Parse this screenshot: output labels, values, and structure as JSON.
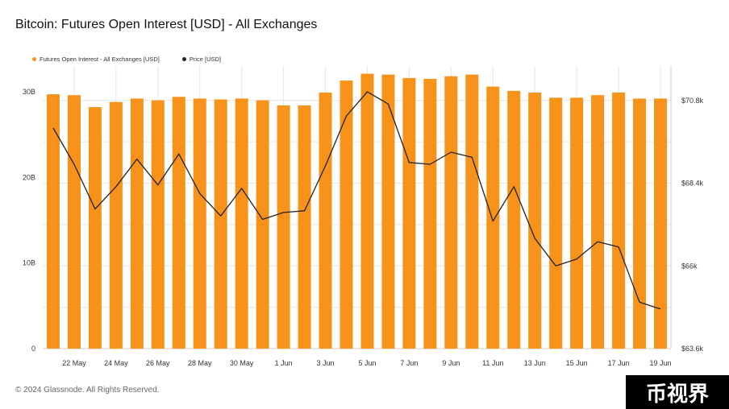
{
  "header": {
    "title": "Bitcoin: Futures Open Interest [USD] - All Exchanges"
  },
  "footer": {
    "copyright": "© 2024 Glassnode. All Rights Reserved."
  },
  "watermark": {
    "text": "币视界"
  },
  "colors": {
    "bar": "#F7931A",
    "line": "#222222",
    "grid": "#e6e6e6"
  },
  "chart_data": {
    "type": "bar",
    "legend_placement": "top-left",
    "grid": true,
    "x_tick_labels": [
      "22 May",
      "24 May",
      "26 May",
      "28 May",
      "30 May",
      "1 Jun",
      "3 Jun",
      "5 Jun",
      "7 Jun",
      "9 Jun",
      "11 Jun",
      "13 Jun",
      "15 Jun",
      "17 Jun",
      "19 Jun"
    ],
    "x": [
      "21 May",
      "22 May",
      "23 May",
      "24 May",
      "25 May",
      "26 May",
      "27 May",
      "28 May",
      "29 May",
      "30 May",
      "31 May",
      "1 Jun",
      "2 Jun",
      "3 Jun",
      "4 Jun",
      "5 Jun",
      "6 Jun",
      "7 Jun",
      "8 Jun",
      "9 Jun",
      "10 Jun",
      "11 Jun",
      "12 Jun",
      "13 Jun",
      "14 Jun",
      "15 Jun",
      "16 Jun",
      "17 Jun",
      "18 Jun",
      "19 Jun"
    ],
    "y_left": {
      "ticks": [
        "0",
        "10B",
        "20B",
        "30B"
      ],
      "range": [
        0,
        33
      ]
    },
    "y_right": {
      "ticks": [
        "$63.6k",
        "$66k",
        "$68.4k",
        "$70.8k"
      ],
      "range": [
        63600,
        71800
      ]
    },
    "series": [
      {
        "name": "Futures Open Interest - All Exchanges [USD]",
        "type": "bar",
        "axis": "left",
        "unit": "B USD",
        "values": [
          29.7,
          29.6,
          28.2,
          28.8,
          29.2,
          29.0,
          29.4,
          29.2,
          29.1,
          29.2,
          29.0,
          28.4,
          28.4,
          29.9,
          31.3,
          32.1,
          32.0,
          31.6,
          31.5,
          31.8,
          32.0,
          30.6,
          30.1,
          29.9,
          29.3,
          29.3,
          29.6,
          29.9,
          29.2,
          29.2
        ]
      },
      {
        "name": "Price [USD]",
        "type": "line",
        "axis": "right",
        "unit": "USD",
        "values": [
          70000,
          68950,
          67650,
          68300,
          69100,
          68350,
          69250,
          68100,
          67450,
          68250,
          67350,
          67550,
          67600,
          68900,
          70350,
          71050,
          70700,
          69000,
          68950,
          69300,
          69150,
          67300,
          68300,
          66800,
          66000,
          66200,
          66700,
          66550,
          64950,
          64750
        ]
      }
    ]
  }
}
